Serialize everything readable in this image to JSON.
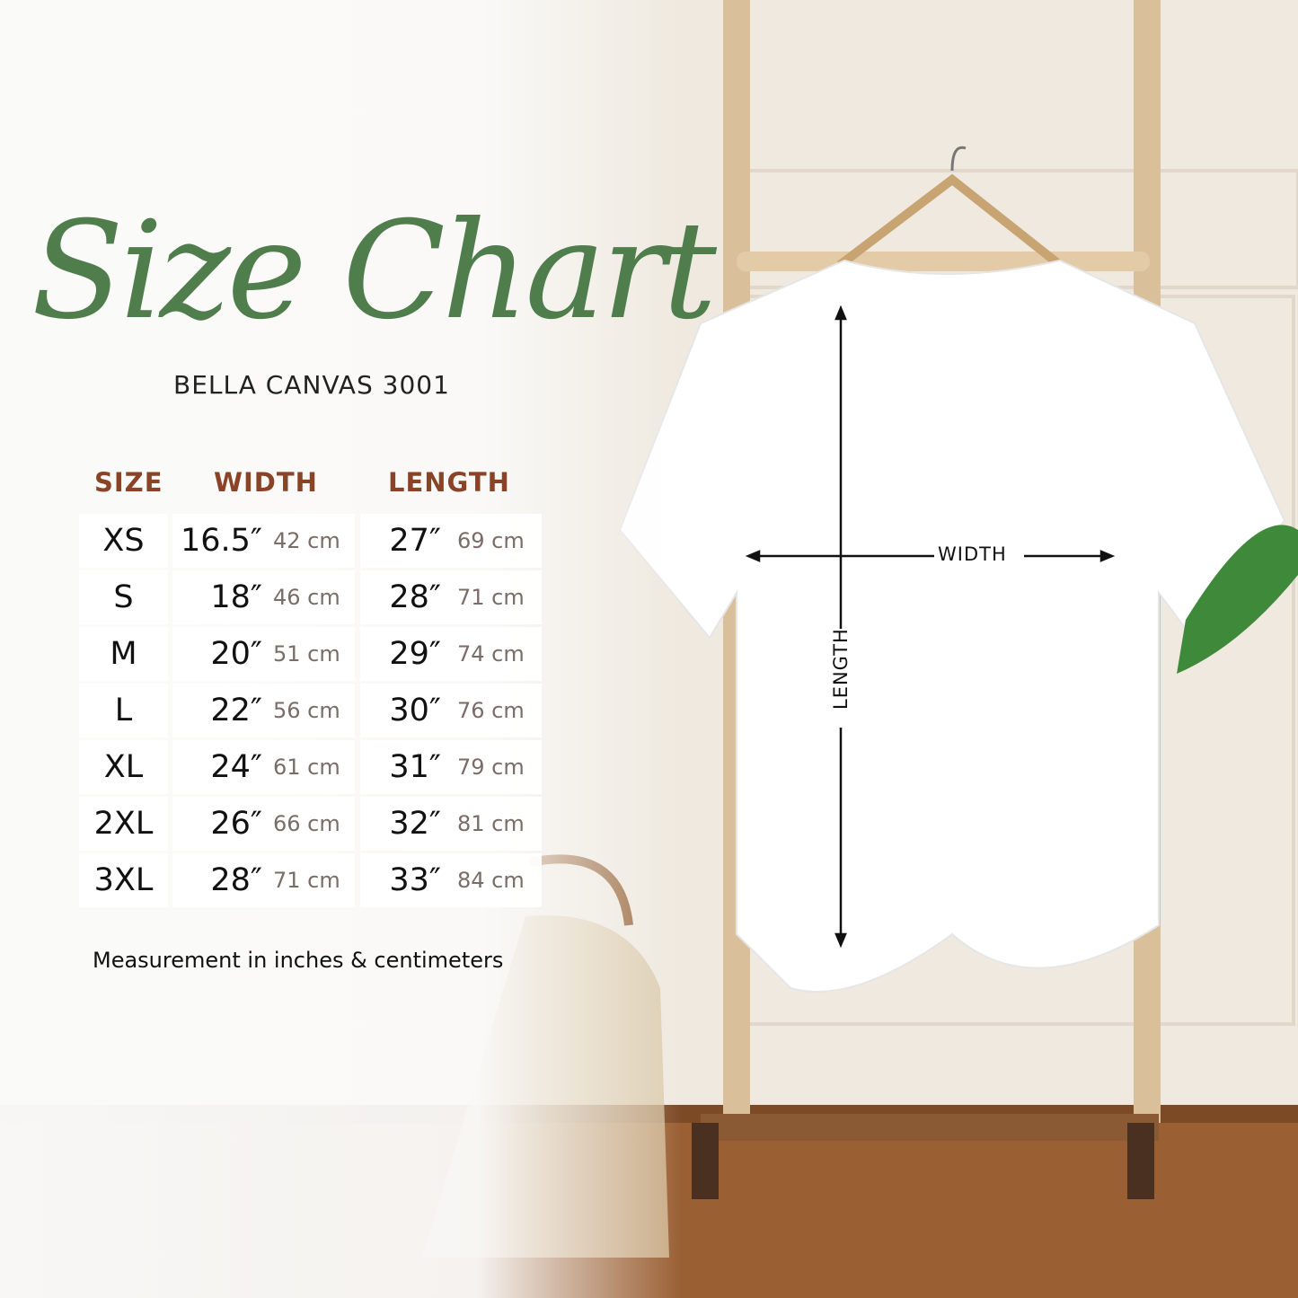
{
  "title": "Size Chart",
  "subtitle": "BELLA CANVAS 3001",
  "table": {
    "headers": [
      "SIZE",
      "WIDTH",
      "LENGTH"
    ],
    "rows": [
      {
        "size": "XS",
        "width_in": "16.5″",
        "width_cm": "42 cm",
        "length_in": "27″",
        "length_cm": "69 cm"
      },
      {
        "size": "S",
        "width_in": "18″",
        "width_cm": "46 cm",
        "length_in": "28″",
        "length_cm": "71 cm"
      },
      {
        "size": "M",
        "width_in": "20″",
        "width_cm": "51 cm",
        "length_in": "29″",
        "length_cm": "74 cm"
      },
      {
        "size": "L",
        "width_in": "22″",
        "width_cm": "56 cm",
        "length_in": "30″",
        "length_cm": "76 cm"
      },
      {
        "size": "XL",
        "width_in": "24″",
        "width_cm": "61 cm",
        "length_in": "31″",
        "length_cm": "79 cm"
      },
      {
        "size": "2XL",
        "width_in": "26″",
        "width_cm": "66 cm",
        "length_in": "32″",
        "length_cm": "81 cm"
      },
      {
        "size": "3XL",
        "width_in": "28″",
        "width_cm": "71 cm",
        "length_in": "33″",
        "length_cm": "84 cm"
      }
    ]
  },
  "note": "Measurement in inches & centimeters",
  "diagram": {
    "width_label": "WIDTH",
    "length_label": "LENGTH"
  },
  "colors": {
    "title": "#4f7d4c",
    "header": "#8a4327",
    "cm_text": "#7a6c66"
  }
}
